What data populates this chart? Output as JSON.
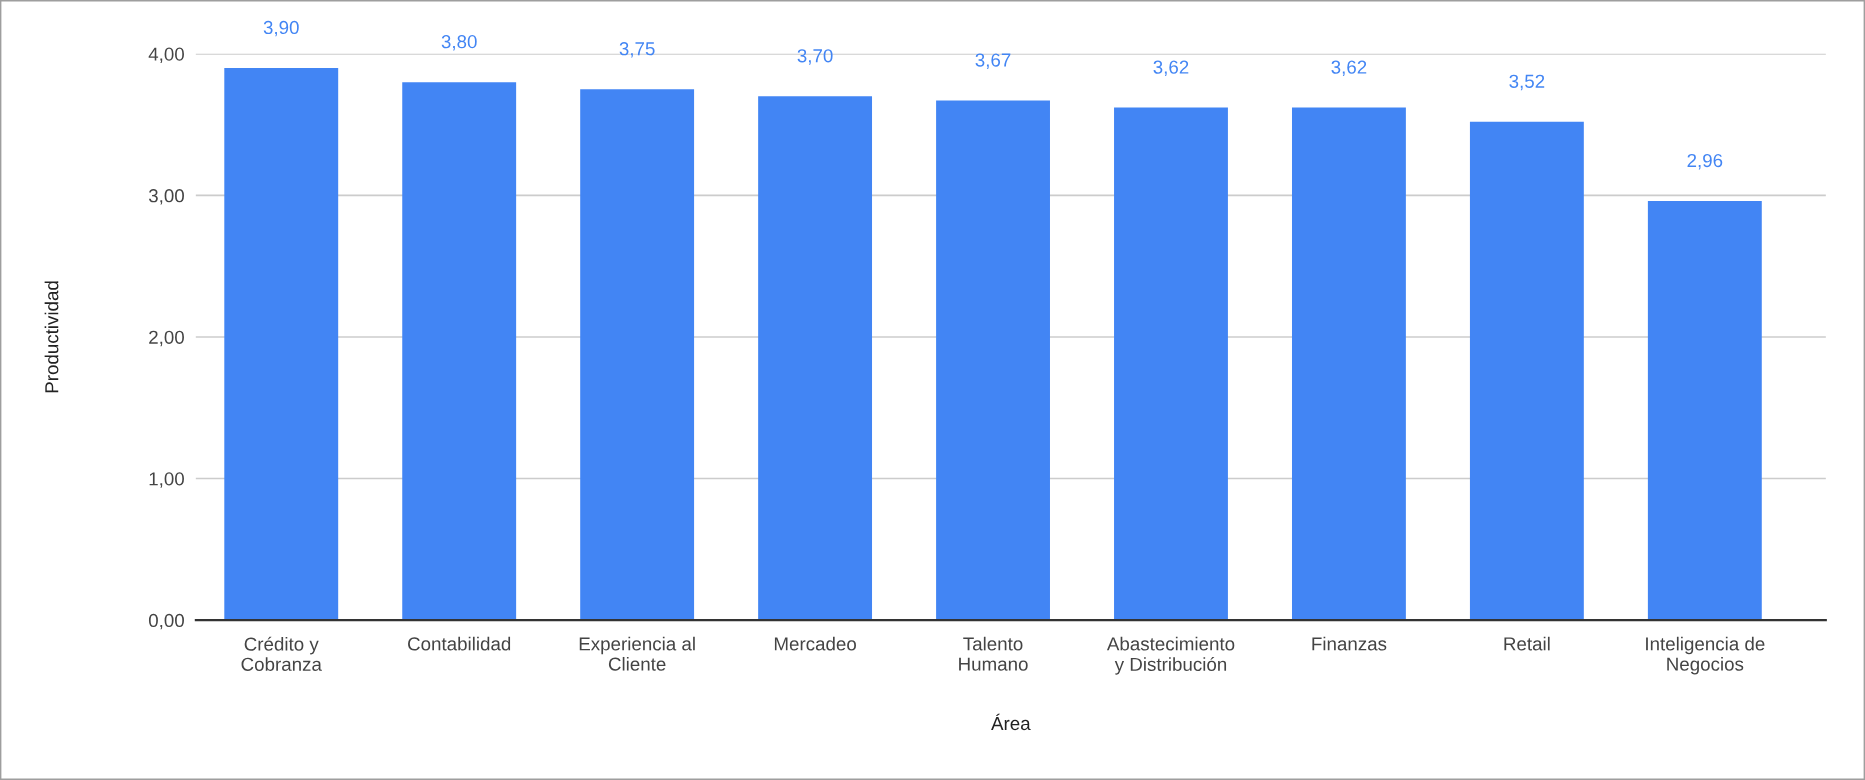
{
  "chart_data": {
    "type": "bar",
    "xlabel": "Área",
    "ylabel": "Productividad",
    "categories": [
      "Crédito y\nCobranza",
      "Contabilidad",
      "Experiencia al\nCliente",
      "Mercadeo",
      "Talento\nHumano",
      "Abastecimiento\ny Distribución",
      "Finanzas",
      "Retail",
      "Inteligencia de\nNegocios"
    ],
    "values": [
      3.9,
      3.8,
      3.75,
      3.7,
      3.67,
      3.62,
      3.62,
      3.52,
      2.96
    ],
    "value_labels": [
      "3,90",
      "3,80",
      "3,75",
      "3,70",
      "3,67",
      "3,62",
      "3,62",
      "3,52",
      "2,96"
    ],
    "color": "#4285f4",
    "ylim": [
      0,
      4
    ],
    "yticks": [
      {
        "value": 0,
        "label": "0,00"
      },
      {
        "value": 1,
        "label": "1,00"
      },
      {
        "value": 2,
        "label": "2,00"
      },
      {
        "value": 3,
        "label": "3,00"
      },
      {
        "value": 4,
        "label": "4,00"
      }
    ],
    "grid": "y",
    "legend": false
  }
}
